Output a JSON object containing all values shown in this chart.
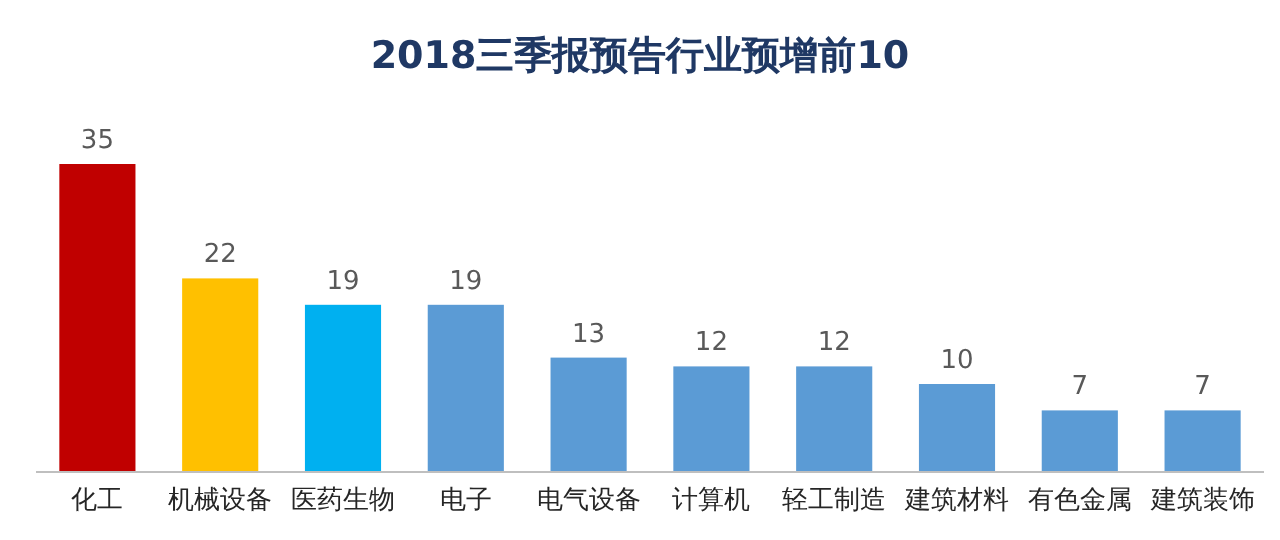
{
  "chart_data": {
    "type": "bar",
    "title": "2018三季报预告行业预增前10",
    "categories": [
      "化工",
      "机械设备",
      "医药生物",
      "电子",
      "电气设备",
      "计算机",
      "轻工制造",
      "建筑材料",
      "有色金属",
      "建筑装饰"
    ],
    "values": [
      35,
      22,
      19,
      19,
      13,
      12,
      12,
      10,
      7,
      7
    ],
    "colors": [
      "#c00000",
      "#ffc000",
      "#00b0f0",
      "#5b9bd5",
      "#5b9bd5",
      "#5b9bd5",
      "#5b9bd5",
      "#5b9bd5",
      "#5b9bd5",
      "#5b9bd5"
    ],
    "data_labels": true
  }
}
